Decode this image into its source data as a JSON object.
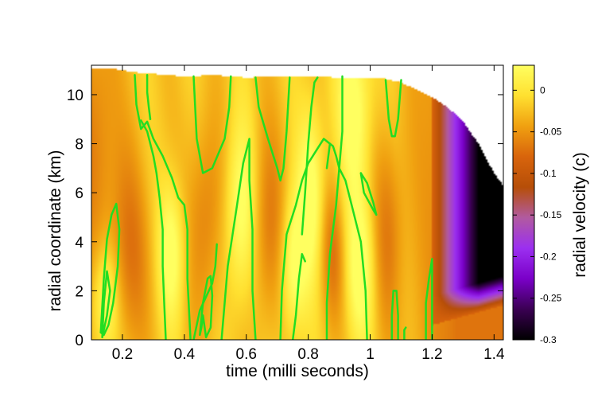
{
  "chart_data": {
    "type": "heatmap",
    "title": "",
    "xlabel": "time   (milli seconds)",
    "ylabel": "radial coordinate   (km)",
    "colorbar_label": "radial velocity   (c)",
    "xlim": [
      0.1,
      1.43
    ],
    "ylim": [
      0,
      11.2
    ],
    "x_ticks": [
      {
        "value": 0.2,
        "label": "0.2"
      },
      {
        "value": 0.4,
        "label": "0.4"
      },
      {
        "value": 0.6,
        "label": "0.6"
      },
      {
        "value": 0.8,
        "label": "0.8"
      },
      {
        "value": 1.0,
        "label": "1"
      },
      {
        "value": 1.2,
        "label": "1.2"
      },
      {
        "value": 1.4,
        "label": "1.4"
      }
    ],
    "y_ticks": [
      {
        "value": 0,
        "label": "0"
      },
      {
        "value": 2,
        "label": "2"
      },
      {
        "value": 4,
        "label": "4"
      },
      {
        "value": 6,
        "label": "6"
      },
      {
        "value": 8,
        "label": "8"
      },
      {
        "value": 10,
        "label": "10"
      }
    ],
    "colorbar": {
      "range": [
        -0.3,
        0.03
      ],
      "ticks": [
        {
          "value": 0,
          "label": "0"
        },
        {
          "value": -0.05,
          "label": "-0.05"
        },
        {
          "value": -0.1,
          "label": "-0.1"
        },
        {
          "value": -0.15,
          "label": "-0.15"
        },
        {
          "value": -0.2,
          "label": "-0.2"
        },
        {
          "value": -0.25,
          "label": "-0.25"
        },
        {
          "value": -0.3,
          "label": "-0.3"
        }
      ],
      "colormap": [
        "#000000",
        "#3a0052",
        "#7a00c8",
        "#9b2ff0",
        "#b15aa0",
        "#b64e08",
        "#d8640c",
        "#f0a010",
        "#ffe030",
        "#ffff60"
      ]
    },
    "contour_color": "#22dd22",
    "surface_radius": {
      "t": [
        0.1,
        0.15,
        0.2,
        0.25,
        0.3,
        0.4,
        0.5,
        0.6,
        0.7,
        0.8,
        0.9,
        1.0,
        1.05,
        1.1,
        1.15,
        1.2,
        1.25,
        1.3,
        1.35,
        1.4,
        1.43
      ],
      "r": [
        11.1,
        11.1,
        11.0,
        10.9,
        10.85,
        10.75,
        10.8,
        10.7,
        10.75,
        10.75,
        10.7,
        10.65,
        10.65,
        10.5,
        10.2,
        9.9,
        9.5,
        8.9,
        8.0,
        6.8,
        6.3
      ]
    },
    "contours": [
      {
        "t": [
          0.13,
          0.14,
          0.15,
          0.165,
          0.18,
          0.19,
          0.185,
          0.17,
          0.155,
          0.14,
          0.13
        ],
        "r": [
          0.3,
          2.5,
          4.1,
          5.1,
          5.55,
          4.5,
          3.0,
          1.5,
          0.6,
          0.2,
          0.3
        ]
      },
      {
        "t": [
          0.135,
          0.15,
          0.16,
          0.15,
          0.14,
          0.135
        ],
        "r": [
          0.1,
          1.0,
          2.0,
          2.8,
          1.5,
          0.1
        ]
      },
      {
        "t": [
          0.24,
          0.245,
          0.26,
          0.28,
          0.3,
          0.33,
          0.36,
          0.38,
          0.4,
          0.41,
          0.41,
          0.42
        ],
        "r": [
          10.8,
          9.6,
          8.6,
          8.9,
          8.2,
          7.5,
          6.6,
          5.8,
          5.5,
          4.5,
          2.5,
          0
        ]
      },
      {
        "t": [
          0.34,
          0.335,
          0.33,
          0.33,
          0.32,
          0.31,
          0.3,
          0.28,
          0.26
        ],
        "r": [
          0,
          1.5,
          3.0,
          4.5,
          5.8,
          6.8,
          7.5,
          8.5,
          8.95
        ]
      },
      {
        "t": [
          0.28,
          0.28,
          0.285,
          0.29
        ],
        "r": [
          10.8,
          10.1,
          9.5,
          9.0
        ]
      },
      {
        "t": [
          0.45,
          0.46,
          0.475,
          0.485,
          0.49,
          0.485,
          0.47,
          0.46,
          0.455,
          0.45
        ],
        "r": [
          0.2,
          1.5,
          2.5,
          2.6,
          1.8,
          0.5,
          0.1,
          1.0,
          0.5,
          0.2
        ]
      },
      {
        "t": [
          0.43,
          0.45,
          0.49,
          0.5,
          0.505
        ],
        "r": [
          0,
          1.2,
          2.3,
          3.0,
          3.9
        ]
      },
      {
        "t": [
          0.52,
          0.54,
          0.57,
          0.59,
          0.61,
          0.61,
          0.62,
          0.62,
          0.63
        ],
        "r": [
          0,
          3.0,
          5.5,
          7.2,
          8.2,
          6.5,
          4.5,
          2.0,
          0
        ]
      },
      {
        "t": [
          0.43,
          0.44,
          0.46,
          0.49,
          0.53,
          0.545,
          0.55
        ],
        "r": [
          10.75,
          8.2,
          6.8,
          7.0,
          8.2,
          9.5,
          10.75
        ]
      },
      {
        "t": [
          0.63,
          0.64,
          0.67,
          0.7,
          0.71,
          0.72,
          0.73,
          0.74
        ],
        "r": [
          10.7,
          9.5,
          8.2,
          7.0,
          6.5,
          7.0,
          8.5,
          10.7
        ]
      },
      {
        "t": [
          0.71,
          0.715,
          0.73,
          0.76,
          0.78,
          0.8,
          0.83,
          0.85,
          0.87
        ],
        "r": [
          0,
          2.0,
          4.3,
          5.5,
          6.5,
          7.2,
          7.8,
          8.2,
          8.0
        ]
      },
      {
        "t": [
          0.75,
          0.76,
          0.77,
          0.78,
          0.79
        ],
        "r": [
          0,
          1.0,
          2.5,
          3.5,
          3.2
        ]
      },
      {
        "t": [
          0.78,
          0.79,
          0.8,
          0.81,
          0.82,
          0.83
        ],
        "r": [
          4.3,
          6.0,
          8.0,
          9.5,
          10.5,
          10.7
        ]
      },
      {
        "t": [
          0.86,
          0.86,
          0.87,
          0.89,
          0.9,
          0.91,
          0.91
        ],
        "r": [
          0,
          1.5,
          3.5,
          5.5,
          7.0,
          8.5,
          10.75
        ]
      },
      {
        "t": [
          0.99,
          0.985,
          0.97,
          0.94,
          0.92,
          0.9,
          0.89,
          0.88,
          0.87,
          0.86
        ],
        "r": [
          0,
          2.0,
          4.0,
          5.5,
          6.5,
          7.0,
          7.5,
          7.9,
          8.0,
          7.0
        ]
      },
      {
        "t": [
          0.97,
          0.99,
          1.01,
          1.02,
          1.01,
          0.98,
          0.97
        ],
        "r": [
          6.8,
          6.4,
          5.6,
          5.1,
          5.3,
          6.0,
          6.8
        ]
      },
      {
        "t": [
          1.05,
          1.06,
          1.07,
          1.08,
          1.09,
          1.1
        ],
        "r": [
          10.6,
          9.0,
          8.3,
          8.3,
          9.0,
          10.6
        ]
      },
      {
        "t": [
          1.07,
          1.07,
          1.075,
          1.085,
          1.09,
          1.09
        ],
        "r": [
          0,
          1.0,
          2.0,
          2.0,
          1.0,
          0
        ]
      },
      {
        "t": [
          1.11,
          1.11,
          1.115
        ],
        "r": [
          0,
          0.4,
          0.5
        ]
      },
      {
        "t": [
          1.18,
          1.18,
          1.19,
          1.2,
          1.2,
          1.2
        ],
        "r": [
          0,
          1.5,
          2.5,
          3.3,
          1.5,
          0
        ]
      }
    ]
  }
}
